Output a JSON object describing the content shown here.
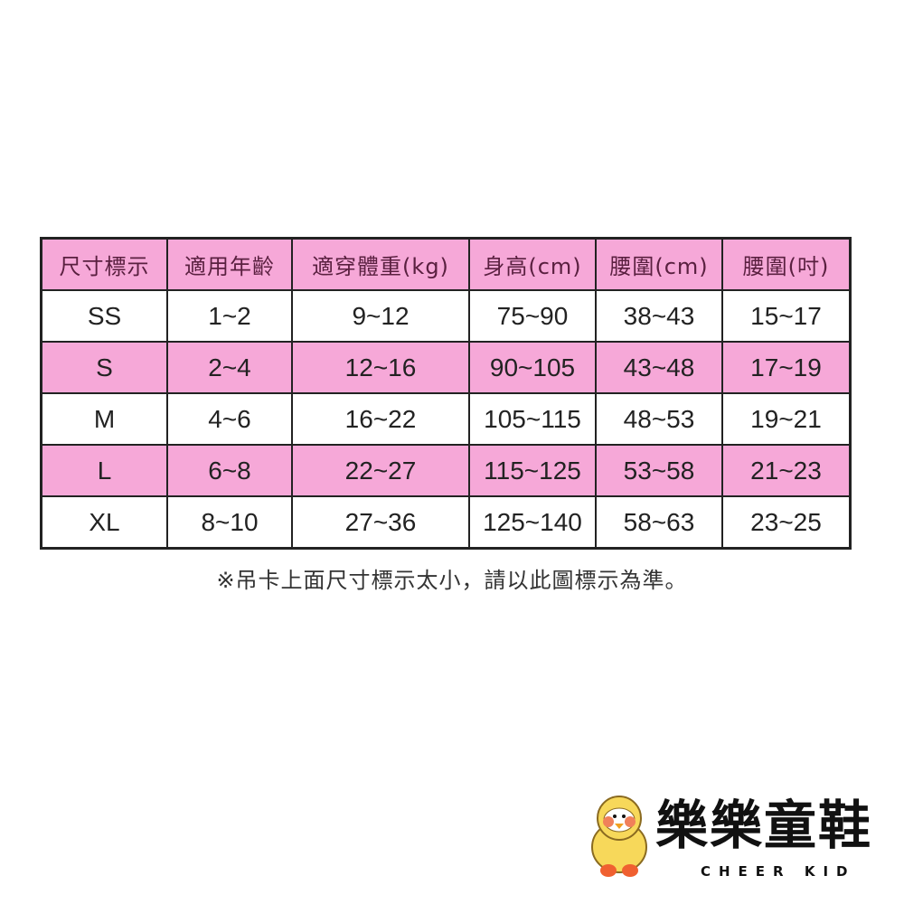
{
  "colors": {
    "header_bg": "#f6a8d8",
    "alt_row_bg": "#f6a8d8",
    "border": "#222222"
  },
  "table": {
    "headers": [
      "尺寸標示",
      "適用年齡",
      "適穿體重(kg)",
      "身高(cm)",
      "腰圍(cm)",
      "腰圍(吋)"
    ],
    "rows": [
      [
        "SS",
        "1~2",
        "9~12",
        "75~90",
        "38~43",
        "15~17"
      ],
      [
        "S",
        "2~4",
        "12~16",
        "90~105",
        "43~48",
        "17~19"
      ],
      [
        "M",
        "4~6",
        "16~22",
        "105~115",
        "48~53",
        "19~21"
      ],
      [
        "L",
        "6~8",
        "22~27",
        "115~125",
        "53~58",
        "21~23"
      ],
      [
        "XL",
        "8~10",
        "27~36",
        "125~140",
        "58~63",
        "23~25"
      ]
    ]
  },
  "note": "※吊卡上面尺寸標示太小，請以此圖標示為準。",
  "logo": {
    "name": "樂樂童鞋",
    "subtitle": "CHEER KID",
    "icon": "chick-mascot-icon"
  }
}
